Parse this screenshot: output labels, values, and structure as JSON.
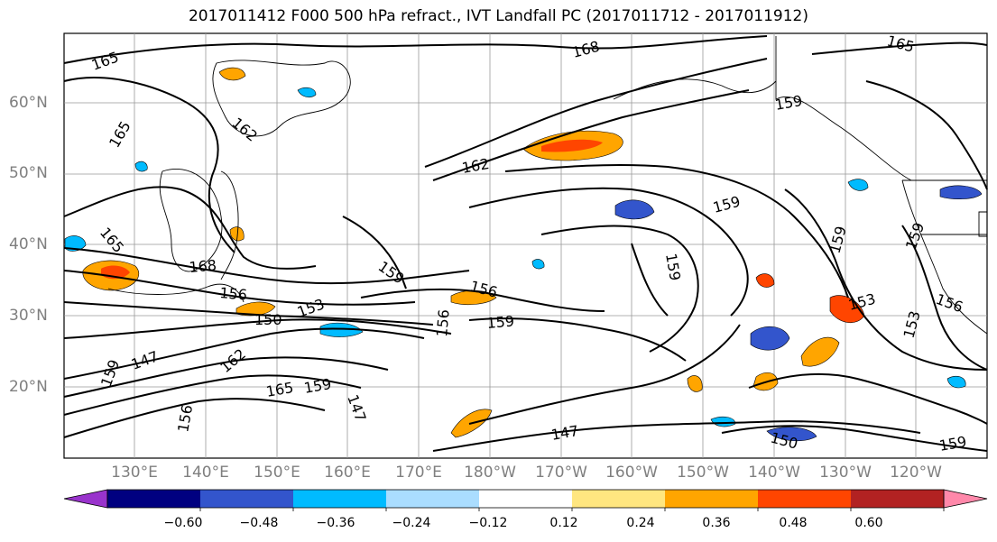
{
  "title": "2017011412 F000 500 hPa refract., IVT Landfall PC (2017011712 - 2017011912)",
  "latitude_labels": [
    "60°N",
    "50°N",
    "40°N",
    "30°N",
    "20°N"
  ],
  "longitude_labels": [
    "130°E",
    "140°E",
    "150°E",
    "160°E",
    "170°E",
    "180°W",
    "170°W",
    "160°W",
    "150°W",
    "140°W",
    "130°W",
    "120°W"
  ],
  "contour_labels": [
    "165",
    "168",
    "165",
    "162",
    "165",
    "159",
    "162",
    "159",
    "159",
    "159",
    "165",
    "168",
    "156",
    "159",
    "156",
    "159",
    "159",
    "156",
    "153",
    "153",
    "150",
    "153",
    "147",
    "162",
    "165",
    "159",
    "147",
    "156",
    "147",
    "150",
    "159",
    "156",
    "159"
  ],
  "colorbar": {
    "ticks": [
      "−0.60",
      "−0.48",
      "−0.36",
      "−0.24",
      "−0.12",
      "0.12",
      "0.24",
      "0.36",
      "0.48",
      "0.60"
    ],
    "colors": [
      "#9933cc",
      "#000080",
      "#3355cc",
      "#00bbff",
      "#aaddff",
      "#ffffff",
      "#ffe680",
      "#ffa500",
      "#ff4500",
      "#b22222",
      "#ff88aa"
    ]
  },
  "colors": {
    "contour": "#000000",
    "grid": "#999999",
    "axis_label": "#7f7f7f"
  }
}
